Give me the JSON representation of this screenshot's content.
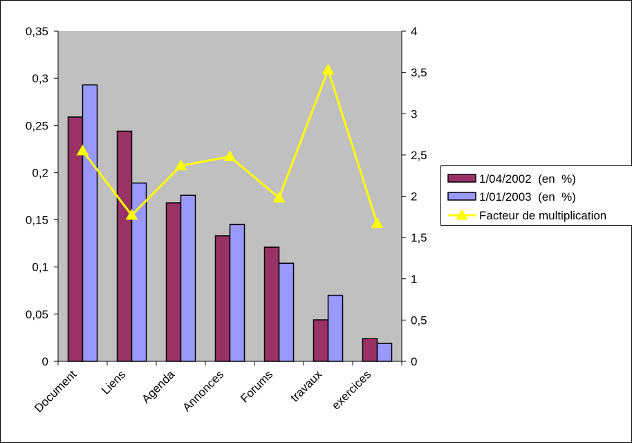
{
  "chart_data": {
    "type": "bar+line",
    "categories": [
      "Document",
      "Liens",
      "Agenda",
      "Annonces",
      "Forums",
      "travaux",
      "exercices"
    ],
    "left_axis": {
      "ylim": [
        0,
        0.35
      ],
      "ticks": [
        0,
        0.05,
        0.1,
        0.15,
        0.2,
        0.25,
        0.3,
        0.35
      ],
      "tick_labels": [
        "0",
        "0,05",
        "0,1",
        "0,15",
        "0,2",
        "0,25",
        "0,3",
        "0,35"
      ]
    },
    "right_axis": {
      "ylim": [
        0,
        4
      ],
      "ticks": [
        0,
        0.5,
        1,
        1.5,
        2,
        2.5,
        3,
        3.5,
        4
      ],
      "tick_labels": [
        "0",
        "0,5",
        "1",
        "1,5",
        "2",
        "2,5",
        "3",
        "3,5",
        "4"
      ]
    },
    "series": [
      {
        "name": "1/04/2002  (en  %)",
        "kind": "bar",
        "axis": "left",
        "color": "#993366",
        "values": [
          0.259,
          0.244,
          0.168,
          0.133,
          0.121,
          0.044,
          0.024
        ]
      },
      {
        "name": "1/01/2003  (en  %)",
        "kind": "bar",
        "axis": "left",
        "color": "#9999ff",
        "values": [
          0.293,
          0.189,
          0.176,
          0.145,
          0.104,
          0.07,
          0.019
        ]
      },
      {
        "name": "Facteur de multiplication",
        "kind": "line",
        "axis": "right",
        "color": "#ffff00",
        "marker": "triangle",
        "values": [
          2.55,
          1.77,
          2.37,
          2.48,
          1.98,
          3.53,
          1.67
        ]
      }
    ],
    "plot_background": "#c0c0c0",
    "grid": false,
    "legend_position": "right"
  }
}
